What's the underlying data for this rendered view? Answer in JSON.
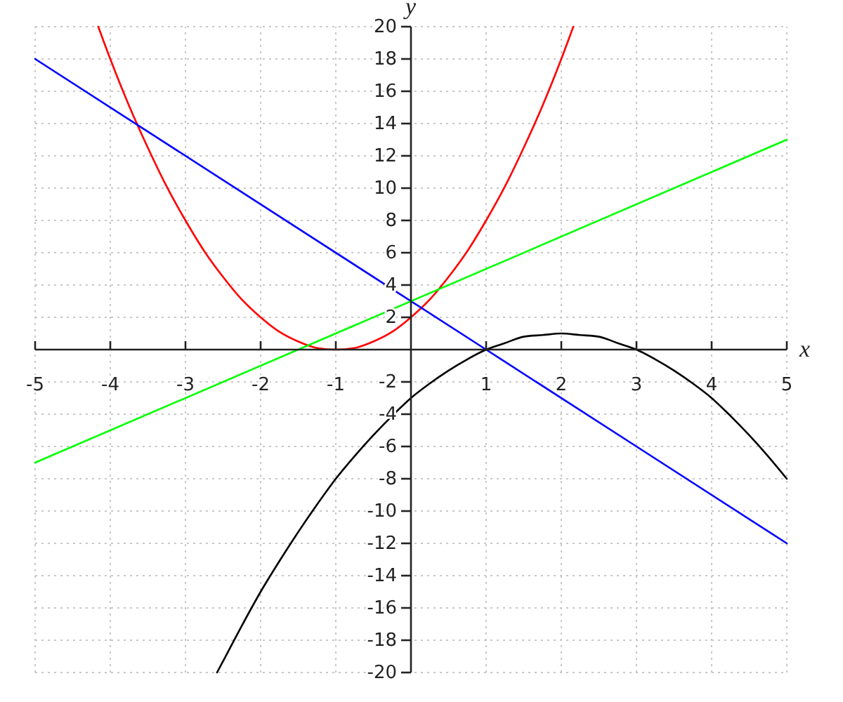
{
  "chart_data": {
    "type": "line",
    "xlabel": "x",
    "ylabel": "y",
    "xlim": [
      -5,
      5
    ],
    "ylim": [
      -20,
      20
    ],
    "xticks": [
      -5,
      -4,
      -3,
      -2,
      -1,
      1,
      2,
      3,
      4,
      5
    ],
    "yticks": [
      -20,
      -18,
      -16,
      -14,
      -12,
      -10,
      -8,
      -6,
      -4,
      -2,
      2,
      4,
      6,
      8,
      10,
      12,
      14,
      16,
      18,
      20
    ],
    "grid": true,
    "series": [
      {
        "color": "#ff0000",
        "x": [
          -4.16,
          -4,
          -3.75,
          -3.5,
          -3.25,
          -3,
          -2.75,
          -2.5,
          -2.25,
          -2,
          -1.75,
          -1.5,
          -1.25,
          -1,
          -0.75,
          -0.5,
          -0.25,
          0,
          0.25,
          0.5,
          0.75,
          1,
          1.25,
          1.5,
          1.75,
          2,
          2.16
        ],
        "values": [
          20,
          18,
          15.1,
          12.5,
          10.1,
          8,
          6.1,
          4.5,
          3.1,
          2,
          1.1,
          0.5,
          0.1,
          0,
          0.1,
          0.5,
          1.1,
          2,
          3.1,
          4.5,
          6.1,
          8,
          10.1,
          12.5,
          15.1,
          18,
          20
        ]
      },
      {
        "color": "#0000ff",
        "x": [
          -5,
          1,
          5
        ],
        "values": [
          18,
          0,
          -12
        ]
      },
      {
        "color": "#00ff00",
        "x": [
          -5,
          5
        ],
        "values": [
          -7,
          13
        ]
      },
      {
        "color": "#000000",
        "x": [
          -2.58,
          -2.5,
          -2.25,
          -2,
          -1.75,
          -1.5,
          -1.25,
          -1,
          -0.75,
          -0.5,
          -0.25,
          0,
          0.25,
          0.5,
          0.75,
          1,
          1.25,
          1.5,
          1.75,
          2,
          2.25,
          2.5,
          2.75,
          3,
          3.25,
          3.5,
          3.75,
          4,
          4.25,
          4.5,
          4.75,
          5
        ],
        "values": [
          -20,
          -19.3,
          -17.1,
          -15,
          -13.1,
          -11.3,
          -9.6,
          -8,
          -6.6,
          -5.3,
          -4.1,
          -3,
          -2.1,
          -1.3,
          -0.6,
          0,
          0.4,
          0.8,
          0.9,
          1,
          0.9,
          0.8,
          0.4,
          0,
          -0.6,
          -1.3,
          -2.1,
          -3,
          -4.1,
          -5.3,
          -6.6,
          -8
        ]
      }
    ]
  }
}
